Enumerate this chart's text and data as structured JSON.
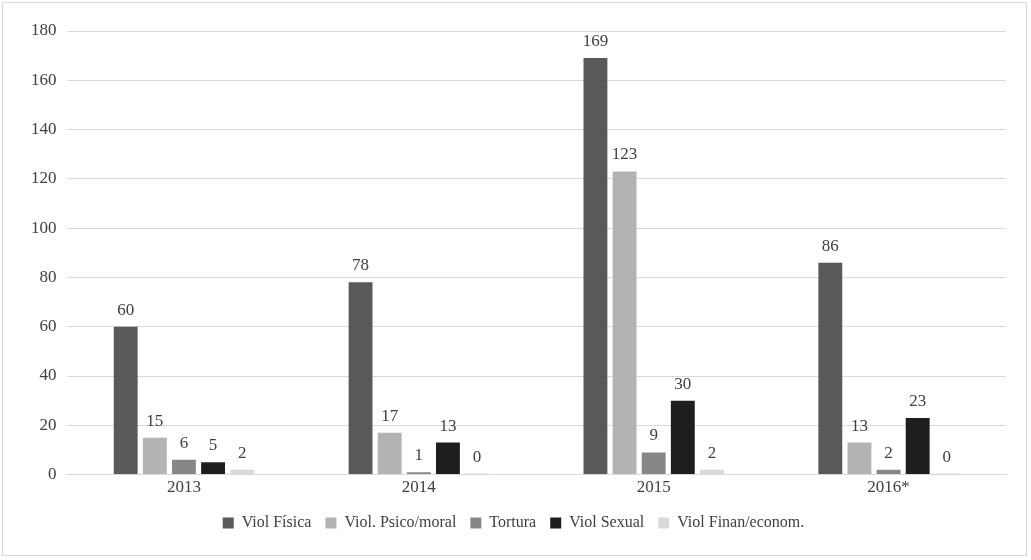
{
  "chart_data": {
    "type": "bar",
    "categories": [
      "2013",
      "2014",
      "2015",
      "2016*"
    ],
    "series": [
      {
        "name": "Viol Física",
        "color": "#595959",
        "values": [
          60,
          78,
          169,
          86
        ]
      },
      {
        "name": "Viol. Psico/moral",
        "color": "#b3b3b3",
        "values": [
          15,
          17,
          123,
          13
        ]
      },
      {
        "name": "Tortura",
        "color": "#878787",
        "values": [
          6,
          1,
          9,
          2
        ]
      },
      {
        "name": "Viol Sexual",
        "color": "#1e1e1e",
        "values": [
          5,
          13,
          30,
          23
        ]
      },
      {
        "name": "Viol Finan/econom.",
        "color": "#d9d9d9",
        "values": [
          2,
          0,
          2,
          0
        ]
      }
    ],
    "ylim": [
      0,
      180
    ],
    "yticks": [
      0,
      20,
      40,
      60,
      80,
      100,
      120,
      140,
      160,
      180
    ],
    "grid": "y",
    "legend": "bottom",
    "data_labels": true
  }
}
